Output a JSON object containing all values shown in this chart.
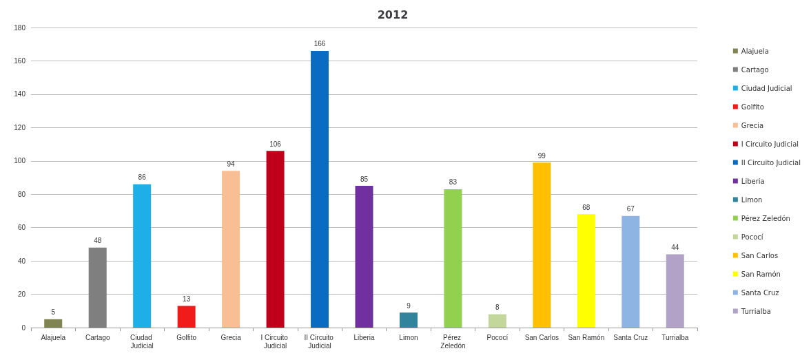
{
  "chart_data": {
    "type": "bar",
    "title": "2012",
    "categories": [
      "Alajuela",
      "Cartago",
      "Ciudad Judicial",
      "Golfito",
      "Grecia",
      "I Circuito Judicial",
      "II Circuito Judicial",
      "Liberia",
      "Limon",
      "Pérez Zeledón",
      "Pococí",
      "San Carlos",
      "San Ramón",
      "Santa Cruz",
      "Turrialba"
    ],
    "series": [
      {
        "name": "Alajuela",
        "color": "#7f8452",
        "values": [
          5,
          null,
          null,
          null,
          null,
          null,
          null,
          null,
          null,
          null,
          null,
          null,
          null,
          null,
          null
        ]
      },
      {
        "name": "Cartago",
        "color": "#7f7f7f",
        "values": [
          null,
          48,
          null,
          null,
          null,
          null,
          null,
          null,
          null,
          null,
          null,
          null,
          null,
          null,
          null
        ]
      },
      {
        "name": "Ciudad Judicial",
        "color": "#1eaee8",
        "values": [
          null,
          null,
          86,
          null,
          null,
          null,
          null,
          null,
          null,
          null,
          null,
          null,
          null,
          null,
          null
        ]
      },
      {
        "name": "Golfito",
        "color": "#f21b1b",
        "values": [
          null,
          null,
          null,
          13,
          null,
          null,
          null,
          null,
          null,
          null,
          null,
          null,
          null,
          null,
          null
        ]
      },
      {
        "name": "Grecia",
        "color": "#f9bf94",
        "values": [
          null,
          null,
          null,
          null,
          94,
          null,
          null,
          null,
          null,
          null,
          null,
          null,
          null,
          null,
          null
        ]
      },
      {
        "name": "I Circuito Judicial",
        "color": "#c0001b",
        "values": [
          null,
          null,
          null,
          null,
          null,
          106,
          null,
          null,
          null,
          null,
          null,
          null,
          null,
          null,
          null
        ]
      },
      {
        "name": "II Circuito Judicial",
        "color": "#0a6cc0",
        "values": [
          null,
          null,
          null,
          null,
          null,
          null,
          166,
          null,
          null,
          null,
          null,
          null,
          null,
          null,
          null
        ]
      },
      {
        "name": "Liberia",
        "color": "#7030a0",
        "values": [
          null,
          null,
          null,
          null,
          null,
          null,
          null,
          85,
          null,
          null,
          null,
          null,
          null,
          null,
          null
        ]
      },
      {
        "name": "Limon",
        "color": "#31849b",
        "values": [
          null,
          null,
          null,
          null,
          null,
          null,
          null,
          null,
          9,
          null,
          null,
          null,
          null,
          null,
          null
        ]
      },
      {
        "name": "Pérez Zeledón",
        "color": "#92d050",
        "values": [
          null,
          null,
          null,
          null,
          null,
          null,
          null,
          null,
          null,
          83,
          null,
          null,
          null,
          null,
          null
        ]
      },
      {
        "name": "Pococí",
        "color": "#c3d69b",
        "values": [
          null,
          null,
          null,
          null,
          null,
          null,
          null,
          null,
          null,
          null,
          8,
          null,
          null,
          null,
          null
        ]
      },
      {
        "name": "San Carlos",
        "color": "#ffc000",
        "values": [
          null,
          null,
          null,
          null,
          null,
          null,
          null,
          null,
          null,
          null,
          null,
          99,
          null,
          null,
          null
        ]
      },
      {
        "name": "San Ramón",
        "color": "#ffff00",
        "values": [
          null,
          null,
          null,
          null,
          null,
          null,
          null,
          null,
          null,
          null,
          null,
          null,
          68,
          null,
          null
        ]
      },
      {
        "name": "Santa Cruz",
        "color": "#8eb4e3",
        "values": [
          null,
          null,
          null,
          null,
          null,
          null,
          null,
          null,
          null,
          null,
          null,
          null,
          null,
          67,
          null
        ]
      },
      {
        "name": "Turrialba",
        "color": "#b3a2c7",
        "values": [
          null,
          null,
          null,
          null,
          null,
          null,
          null,
          null,
          null,
          null,
          null,
          null,
          null,
          null,
          44
        ]
      }
    ],
    "ylim": [
      0,
      180
    ],
    "yticks": [
      0,
      20,
      40,
      60,
      80,
      100,
      120,
      140,
      160,
      180
    ],
    "grid": "y",
    "legend": "right",
    "data_labels": true
  }
}
